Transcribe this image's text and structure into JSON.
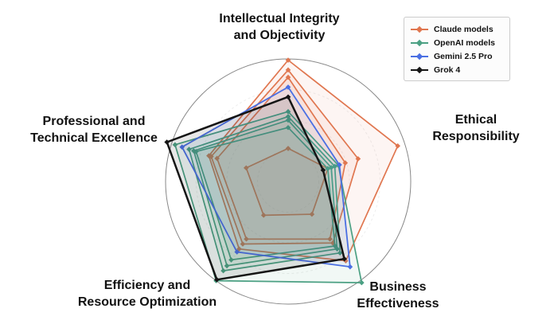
{
  "chart_data": {
    "type": "radar",
    "title": "",
    "axes": [
      "Intellectual Integrity and Objectivity",
      "Ethical Responsibility",
      "Business Effectiveness",
      "Efficiency and Resource Optimization",
      "Professional and Technical Excellence"
    ],
    "axis_labels_two_line": [
      [
        "Intellectual Integrity",
        "and Objectivity"
      ],
      [
        "Ethical",
        "Responsibility"
      ],
      [
        "Business",
        "Effectiveness"
      ],
      [
        "Efficiency and",
        "Resource Optimization"
      ],
      [
        "Professional and",
        "Technical Excellence"
      ]
    ],
    "r_range": [
      0,
      1
    ],
    "grid_rings": [
      0.25,
      0.5,
      0.75,
      1.0
    ],
    "grid_on": true,
    "legend_position": "top-right",
    "legend": [
      {
        "label": "Claude models",
        "color": "#E0764F"
      },
      {
        "label": "OpenAI models",
        "color": "#4BA083"
      },
      {
        "label": "Gemini 2.5 Pro",
        "color": "#4A6FE3"
      },
      {
        "label": "Grok 4",
        "color": "#151515"
      }
    ],
    "series": [
      {
        "name": "Claude models",
        "color": "#E0764F",
        "fill_opacity": 0.07,
        "stroke_width": 1.7,
        "traces": [
          [
            0.99,
            0.94,
            0.8,
            0.68,
            0.68
          ],
          [
            0.91,
            0.6,
            0.62,
            0.63,
            0.66
          ],
          [
            0.85,
            0.49,
            0.58,
            0.58,
            0.61
          ],
          [
            0.27,
            0.34,
            0.33,
            0.34,
            0.36
          ]
        ]
      },
      {
        "name": "OpenAI models",
        "color": "#4BA083",
        "fill_opacity": 0.08,
        "stroke_width": 1.7,
        "traces": [
          [
            0.57,
            0.43,
            1.02,
            1.0,
            0.97
          ],
          [
            0.53,
            0.4,
            0.72,
            0.9,
            0.85
          ],
          [
            0.5,
            0.37,
            0.68,
            0.85,
            0.81
          ],
          [
            0.44,
            0.34,
            0.65,
            0.79,
            0.79
          ]
        ]
      },
      {
        "name": "Gemini 2.5 Pro",
        "color": "#4A6FE3",
        "fill_opacity": 0.07,
        "stroke_width": 1.8,
        "traces": [
          [
            0.77,
            0.44,
            0.86,
            0.71,
            0.91
          ]
        ]
      },
      {
        "name": "Grok 4",
        "color": "#151515",
        "fill_opacity": 0.1,
        "stroke_width": 2.5,
        "traces": [
          [
            0.69,
            0.3,
            0.78,
            0.99,
            1.04
          ]
        ]
      }
    ],
    "colors": {
      "background": "#ffffff",
      "outer_circle": "#888888",
      "inner_rings": "rgba(0,0,0,0.07)"
    }
  }
}
